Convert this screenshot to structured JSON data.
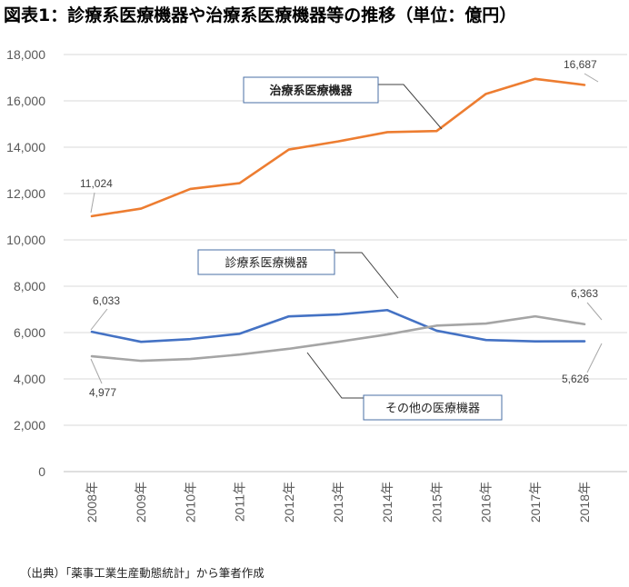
{
  "title": "図表1：診療系医療機器や治療系医療機器等の推移（単位：億円）",
  "source": "（出典）「薬事工業生産動態統計」から筆者作成",
  "chart_data": {
    "type": "line",
    "title": "図表1：診療系医療機器や治療系医療機器等の推移（単位：億円）",
    "xlabel": "",
    "ylabel": "",
    "ylim": [
      0,
      18000
    ],
    "yticks": [
      0,
      2000,
      4000,
      6000,
      8000,
      10000,
      12000,
      14000,
      16000,
      18000
    ],
    "ytick_labels": [
      "0",
      "2,000",
      "4,000",
      "6,000",
      "8,000",
      "10,000",
      "12,000",
      "14,000",
      "16,000",
      "18,000"
    ],
    "categories": [
      "2008年",
      "2009年",
      "2010年",
      "2011年",
      "2012年",
      "2013年",
      "2014年",
      "2015年",
      "2016年",
      "2017年",
      "2018年"
    ],
    "grid": true,
    "series": [
      {
        "name": "治療系医療機器",
        "color": "#ED7D31",
        "values": [
          11024,
          11350,
          12200,
          12450,
          13900,
          14250,
          14650,
          14700,
          16300,
          16950,
          16687
        ],
        "labels": [
          {
            "index": 0,
            "text": "11,024"
          },
          {
            "index": 10,
            "text": "16,687"
          }
        ]
      },
      {
        "name": "診療系医療機器",
        "color": "#4472C4",
        "values": [
          6033,
          5600,
          5720,
          5950,
          6700,
          6780,
          6970,
          6080,
          5680,
          5620,
          5626
        ],
        "labels": [
          {
            "index": 0,
            "text": "6,033"
          },
          {
            "index": 10,
            "text": "5,626"
          }
        ]
      },
      {
        "name": "その他の医療機器",
        "color": "#A5A5A5",
        "values": [
          4977,
          4780,
          4860,
          5050,
          5300,
          5600,
          5920,
          6300,
          6390,
          6700,
          6363
        ],
        "labels": [
          {
            "index": 0,
            "text": "4,977"
          },
          {
            "index": 10,
            "text": "6,363"
          }
        ]
      }
    ]
  }
}
